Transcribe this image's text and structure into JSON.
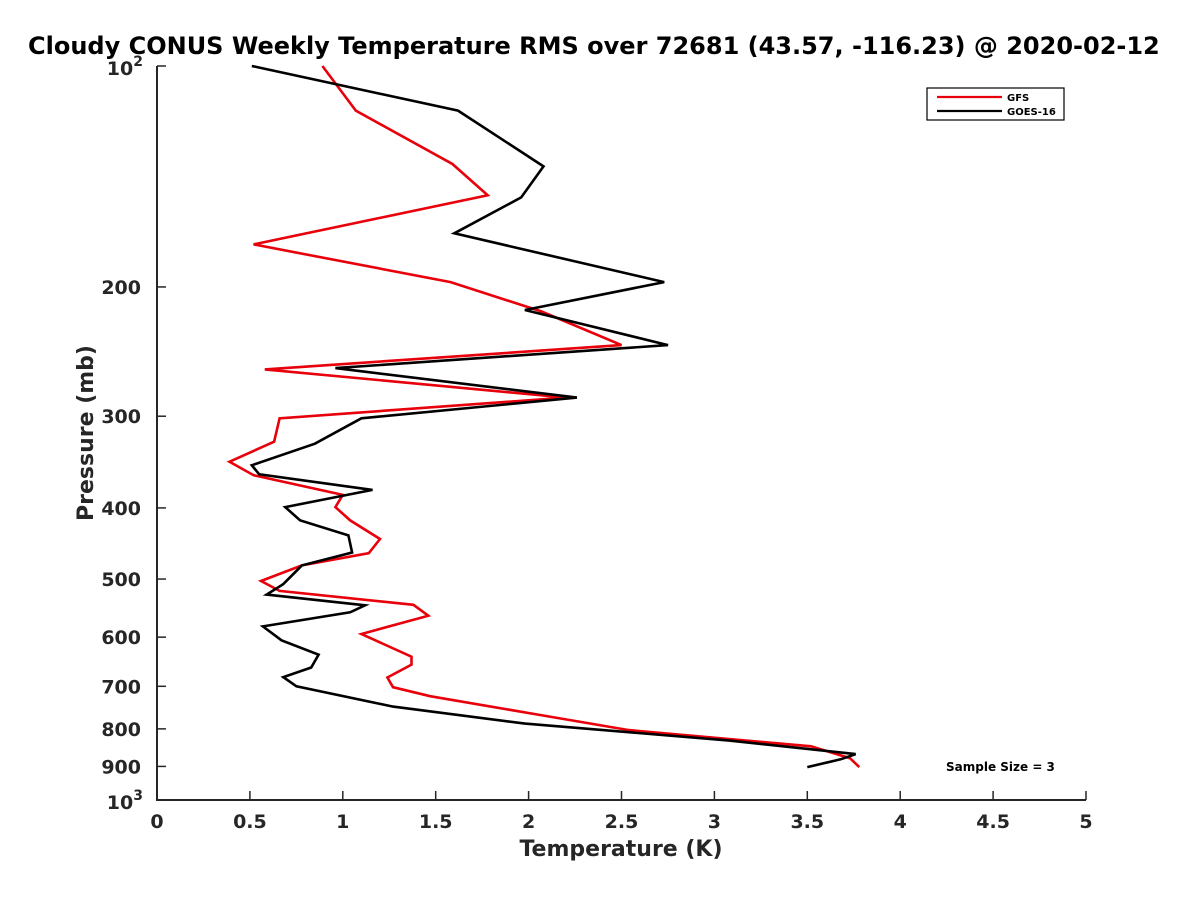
{
  "chart_data": {
    "type": "line",
    "title": "Cloudy CONUS Weekly Temperature RMS over 72681 (43.57, -116.23) @ 2020-02-12",
    "xlabel": "Temperature (K)",
    "ylabel": "Pressure (mb)",
    "xlim": [
      0,
      5
    ],
    "ylim": [
      100,
      1000
    ],
    "y_scale": "log",
    "y_reversed": true,
    "x_ticks": [
      "0",
      "0.5",
      "1",
      "1.5",
      "2",
      "2.5",
      "3",
      "3.5",
      "4",
      "4.5",
      "5"
    ],
    "x_tick_values": [
      0,
      0.5,
      1,
      1.5,
      2,
      2.5,
      3,
      3.5,
      4,
      4.5,
      5
    ],
    "y_ticks": [
      {
        "value": 100,
        "base": "10",
        "exp": "2"
      },
      {
        "value": 200,
        "label": "200"
      },
      {
        "value": 300,
        "label": "300"
      },
      {
        "value": 400,
        "label": "400"
      },
      {
        "value": 500,
        "label": "500"
      },
      {
        "value": 600,
        "label": "600"
      },
      {
        "value": 700,
        "label": "700"
      },
      {
        "value": 800,
        "label": "800"
      },
      {
        "value": 900,
        "label": "900"
      },
      {
        "value": 1000,
        "base": "10",
        "exp": "3"
      }
    ],
    "grid": false,
    "legend_position": "top-right",
    "annotation": "Sample Size = 3",
    "series": [
      {
        "name": "GFS",
        "color": "#e8000b",
        "points": [
          [
            0.89,
            100
          ],
          [
            1.07,
            115
          ],
          [
            1.59,
            136
          ],
          [
            1.78,
            150
          ],
          [
            0.52,
            175
          ],
          [
            1.58,
            197
          ],
          [
            2.07,
            216
          ],
          [
            2.5,
            240
          ],
          [
            0.58,
            259
          ],
          [
            2.2,
            283
          ],
          [
            0.66,
            302
          ],
          [
            0.63,
            325
          ],
          [
            0.39,
            346
          ],
          [
            0.52,
            361
          ],
          [
            1.0,
            384
          ],
          [
            0.96,
            399
          ],
          [
            1.04,
            416
          ],
          [
            1.2,
            441
          ],
          [
            1.14,
            461
          ],
          [
            0.78,
            479
          ],
          [
            0.56,
            503
          ],
          [
            0.66,
            519
          ],
          [
            1.38,
            542
          ],
          [
            1.46,
            561
          ],
          [
            1.1,
            594
          ],
          [
            1.37,
            638
          ],
          [
            1.37,
            654
          ],
          [
            1.24,
            681
          ],
          [
            1.27,
            702
          ],
          [
            1.47,
            722
          ],
          [
            2.05,
            765
          ],
          [
            2.54,
            803
          ],
          [
            3.52,
            845
          ],
          [
            3.73,
            877
          ],
          [
            3.78,
            902
          ]
        ]
      },
      {
        "name": "GOES-16",
        "color": "#000000",
        "points": [
          [
            0.51,
            100
          ],
          [
            1.62,
            115
          ],
          [
            2.08,
            137
          ],
          [
            1.96,
            151
          ],
          [
            1.6,
            169
          ],
          [
            2.73,
            197
          ],
          [
            1.98,
            215
          ],
          [
            2.75,
            240
          ],
          [
            0.96,
            258
          ],
          [
            2.26,
            283
          ],
          [
            1.1,
            302
          ],
          [
            0.85,
            327
          ],
          [
            0.51,
            350
          ],
          [
            0.55,
            360
          ],
          [
            1.16,
            378
          ],
          [
            0.69,
            399
          ],
          [
            0.77,
            416
          ],
          [
            1.03,
            436
          ],
          [
            1.05,
            460
          ],
          [
            0.78,
            479
          ],
          [
            0.68,
            508
          ],
          [
            0.59,
            525
          ],
          [
            1.12,
            543
          ],
          [
            1.04,
            555
          ],
          [
            0.57,
            580
          ],
          [
            0.67,
            606
          ],
          [
            0.87,
            634
          ],
          [
            0.83,
            660
          ],
          [
            0.68,
            680
          ],
          [
            0.75,
            700
          ],
          [
            1.27,
            746
          ],
          [
            1.98,
            787
          ],
          [
            3.08,
            830
          ],
          [
            3.76,
            866
          ],
          [
            3.68,
            880
          ],
          [
            3.5,
            902
          ]
        ]
      }
    ]
  }
}
